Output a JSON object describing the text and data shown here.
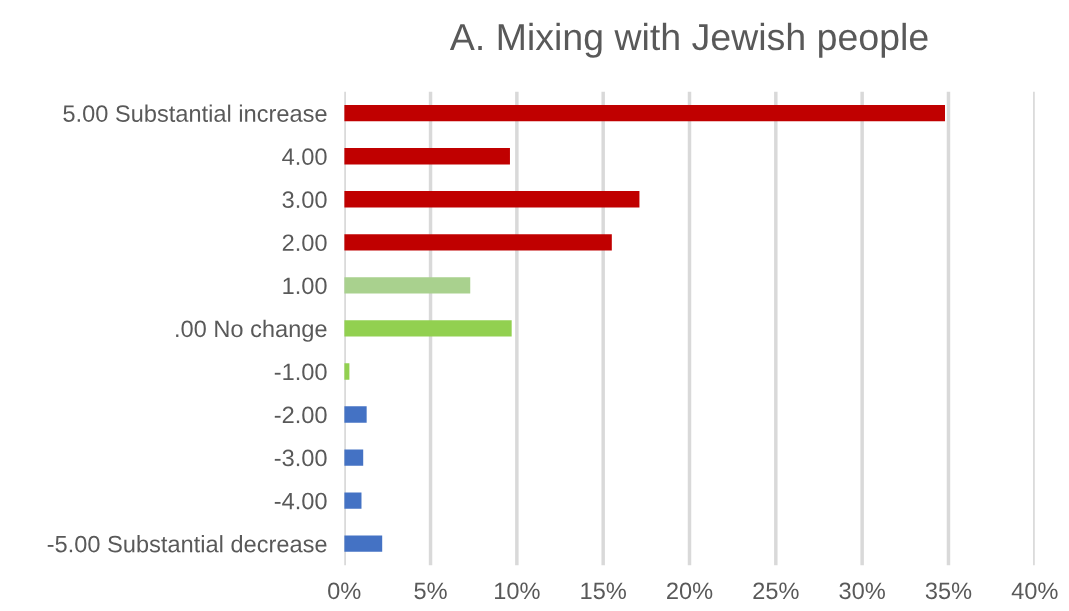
{
  "chart_data": {
    "type": "bar",
    "orientation": "horizontal",
    "title": "A. Mixing with Jewish people",
    "categories": [
      "5.00 Substantial increase",
      "4.00",
      "3.00",
      "2.00",
      "1.00",
      ".00 No change",
      "-1.00",
      "-2.00",
      "-3.00",
      "-4.00",
      "-5.00 Substantial decrease"
    ],
    "values": [
      34.8,
      9.6,
      17.1,
      15.5,
      7.3,
      9.7,
      0.3,
      1.3,
      1.1,
      1.0,
      2.2
    ],
    "colors": [
      "#c00000",
      "#c00000",
      "#c00000",
      "#c00000",
      "#a9d18e",
      "#92d050",
      "#92d050",
      "#4472c4",
      "#4472c4",
      "#4472c4",
      "#4472c4"
    ],
    "xlim": [
      0,
      40
    ],
    "xticks": [
      {
        "value": 0,
        "label": "0%"
      },
      {
        "value": 5,
        "label": "5%"
      },
      {
        "value": 10,
        "label": "10%"
      },
      {
        "value": 15,
        "label": "15%"
      },
      {
        "value": 20,
        "label": "20%"
      },
      {
        "value": 25,
        "label": "25%"
      },
      {
        "value": 30,
        "label": "30%"
      },
      {
        "value": 35,
        "label": "35%"
      },
      {
        "value": 40,
        "label": "40%"
      }
    ],
    "grid": "x",
    "legend": false
  }
}
